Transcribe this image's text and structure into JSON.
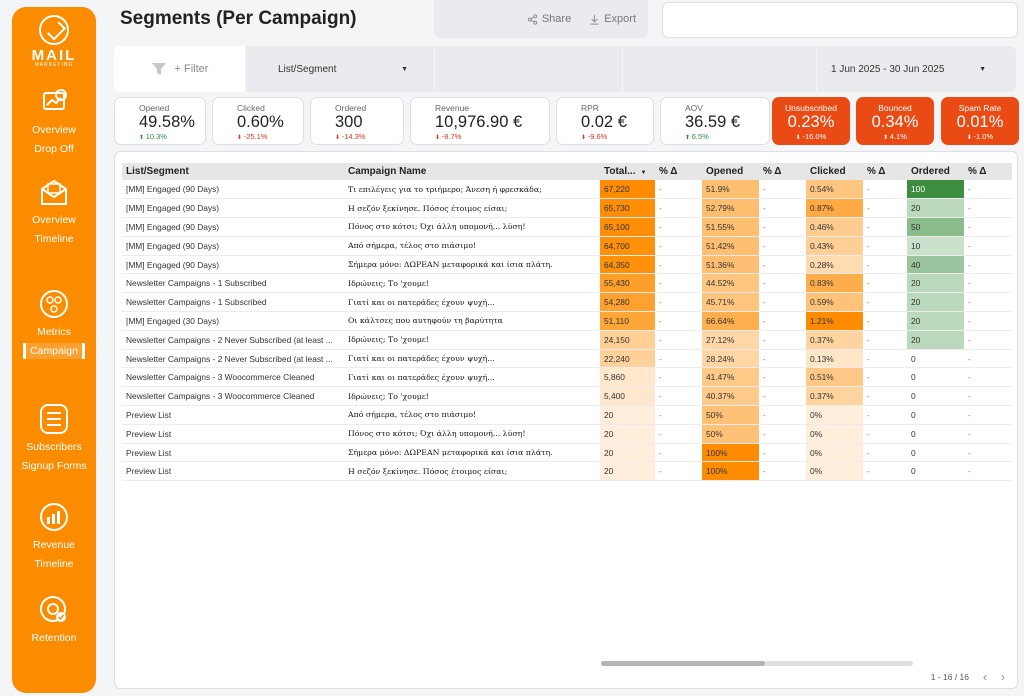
{
  "brand": {
    "logo_text": "MAIL",
    "logo_sub": "MARKETING"
  },
  "sidebar": {
    "groups": [
      {
        "icon": "overview-dropoff-icon",
        "items": [
          "Overview",
          "Drop Off"
        ]
      },
      {
        "icon": "overview-timeline-icon",
        "items": [
          "Overview",
          "Timeline"
        ]
      },
      {
        "icon": "metrics-icon",
        "items": [
          "Metrics",
          "Campaign"
        ],
        "active": "Campaign"
      },
      {
        "icon": "subscribers-icon",
        "items": [
          "Subscribers",
          "Signup Forms"
        ]
      },
      {
        "icon": "revenue-icon",
        "items": [
          "Revenue",
          "Timeline"
        ]
      },
      {
        "icon": "retention-icon",
        "items": [
          "Retention"
        ]
      }
    ]
  },
  "header": {
    "title": "Segments (Per Campaign)",
    "share": "Share",
    "export": "Export"
  },
  "filters": {
    "add_filter": "+ Filter",
    "segment_label": "List/Segment",
    "date_range": "1 Jun 2025 - 30 Jun 2025"
  },
  "kpis": [
    {
      "label": "Opened",
      "value": "49.58%",
      "delta": "10.3%",
      "dir": "up"
    },
    {
      "label": "Clicked",
      "value": "0.60%",
      "delta": "-25.1%",
      "dir": "down"
    },
    {
      "label": "Ordered",
      "value": "300",
      "delta": "-14.3%",
      "dir": "down"
    },
    {
      "label": "Revenue",
      "value": "10,976.90 €",
      "delta": "-8.7%",
      "dir": "down"
    },
    {
      "label": "RPR",
      "value": "0.02 €",
      "delta": "-9.6%",
      "dir": "down"
    },
    {
      "label": "AOV",
      "value": "36.59 €",
      "delta": "6.5%",
      "dir": "up"
    },
    {
      "label": "Unsubscribed",
      "value": "0.23%",
      "delta": "-16.0%",
      "dir": "down",
      "alert": true
    },
    {
      "label": "Bounced",
      "value": "0.34%",
      "delta": "4.1%",
      "dir": "up",
      "alert": true
    },
    {
      "label": "Spam Rate",
      "value": "0.01%",
      "delta": "-1.0%",
      "dir": "down",
      "alert": true
    }
  ],
  "table": {
    "columns": [
      "List/Segment",
      "Campaign Name",
      "Total...",
      "% Δ",
      "Opened",
      "% Δ",
      "Clicked",
      "% Δ",
      "Ordered",
      "% Δ"
    ],
    "rows": [
      [
        "[MM] Engaged (90 Days)",
        "Τι επιλέγεις για το τριήμερο; Άνεση ή φρεσκάδα;",
        "67,220",
        "-",
        "51.9%",
        "-",
        "0.54%",
        "-",
        "100",
        "-"
      ],
      [
        "[MM] Engaged (90 Days)",
        "Η σεζόν ξεκίνησε. Πόσος έτοιμος είσαι;",
        "65,730",
        "-",
        "52.79%",
        "-",
        "0.87%",
        "-",
        "20",
        "-"
      ],
      [
        "[MM] Engaged (90 Days)",
        "Πόνος στο κότσι; Όχι άλλη υπομονή... λύση!",
        "65,100",
        "-",
        "51.55%",
        "-",
        "0.46%",
        "-",
        "50",
        "-"
      ],
      [
        "[MM] Engaged (90 Days)",
        "Από σήμερα, τέλος στο πιάσιμο!",
        "64,700",
        "-",
        "51.42%",
        "-",
        "0.43%",
        "-",
        "10",
        "-"
      ],
      [
        "[MM] Engaged (90 Days)",
        "Σήμερα μόνο: ΔΩΡΕΑΝ μεταφορικά και ίσια πλάτη.",
        "64,350",
        "-",
        "51.36%",
        "-",
        "0.28%",
        "-",
        "40",
        "-"
      ],
      [
        "Newsletter Campaigns - 1 Subscribed",
        "Ιδρώνεις; Το 'χουμε!",
        "55,430",
        "-",
        "44.52%",
        "-",
        "0.83%",
        "-",
        "20",
        "-"
      ],
      [
        "Newsletter Campaigns - 1 Subscribed",
        "Γιατί και οι πατεράδες έχουν ψυχή...",
        "54,280",
        "-",
        "45.71%",
        "-",
        "0.59%",
        "-",
        "20",
        "-"
      ],
      [
        "[MM] Engaged (30 Days)",
        "Οι κάλτσες που αυτηφούν τη βαρύτητα",
        "51,110",
        "-",
        "66.64%",
        "-",
        "1.21%",
        "-",
        "20",
        "-"
      ],
      [
        "Newsletter Campaigns - 2 Never Subscribed (at least ...",
        "Ιδρώνεις; Το 'χουμε!",
        "24,150",
        "-",
        "27.12%",
        "-",
        "0.37%",
        "-",
        "20",
        "-"
      ],
      [
        "Newsletter Campaigns - 2 Never Subscribed (at least ...",
        "Γιατί και οι πατεράδες έχουν ψυχή...",
        "22,240",
        "-",
        "28.24%",
        "-",
        "0.13%",
        "-",
        "0",
        "-"
      ],
      [
        "Newsletter Campaigns - 3 Woocommerce Cleaned",
        "Γιατί και οι πατεράδες έχουν ψυχή...",
        "5,860",
        "-",
        "41.47%",
        "-",
        "0.51%",
        "-",
        "0",
        "-"
      ],
      [
        "Newsletter Campaigns - 3 Woocommerce Cleaned",
        "Ιδρώνεις; Το 'χουμε!",
        "5,400",
        "-",
        "40.37%",
        "-",
        "0.37%",
        "-",
        "0",
        "-"
      ],
      [
        "Preview List",
        "Από σήμερα, τέλος στο πιάσιμο!",
        "20",
        "-",
        "50%",
        "-",
        "0%",
        "-",
        "0",
        "-"
      ],
      [
        "Preview List",
        "Πόνος στο κότσι; Όχι άλλη υπομονή... λύση!",
        "20",
        "-",
        "50%",
        "-",
        "0%",
        "-",
        "0",
        "-"
      ],
      [
        "Preview List",
        "Σήμερα μόνο: ΔΩΡΕΑΝ μεταφορικά και ίσια πλάτη.",
        "20",
        "-",
        "100%",
        "-",
        "0%",
        "-",
        "0",
        "-"
      ],
      [
        "Preview List",
        "Η σεζόν ξεκίνησε. Πόσος έτοιμος είσαι;",
        "20",
        "-",
        "100%",
        "-",
        "0%",
        "-",
        "0",
        "-"
      ]
    ],
    "pagination": "1 - 16 / 16"
  },
  "colors": {
    "brand_orange": "#fb8c00",
    "alert_red": "#ea4b14",
    "heat_orange": "#ff8c00",
    "heat_green": "#3c8d40"
  }
}
